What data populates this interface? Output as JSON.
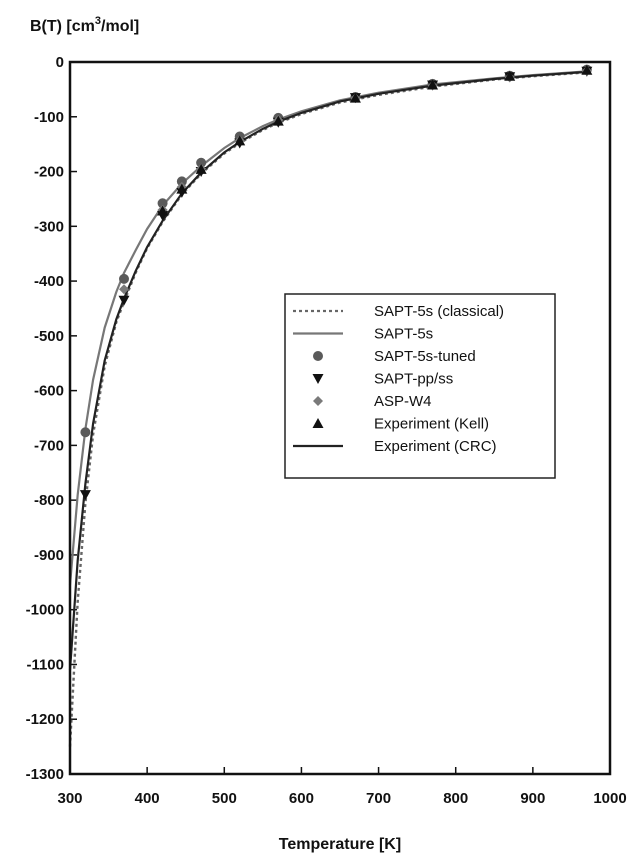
{
  "chart_data": {
    "type": "line",
    "ylabel_prefix": "B(T) [cm",
    "ylabel_sup": "3",
    "ylabel_suffix": "/mol]",
    "xlabel": "Temperature [K]",
    "xlim": [
      300,
      1000
    ],
    "ylim": [
      -1300,
      0
    ],
    "xticks": [
      "300",
      "400",
      "500",
      "600",
      "700",
      "800",
      "900",
      "1000"
    ],
    "yticks": [
      "0",
      "-100",
      "-200",
      "-300",
      "-400",
      "-500",
      "-600",
      "-700",
      "-800",
      "-900",
      "-1000",
      "-1100",
      "-1200",
      "-1300"
    ],
    "grid": false,
    "legend_position": "center-right",
    "series": [
      {
        "name": "SAPT-5s (classical)",
        "style": "dotted-line",
        "color": "#666666",
        "x": [
          300,
          310,
          320,
          330,
          345,
          360,
          370,
          385,
          400,
          420,
          445,
          470,
          500,
          520,
          550,
          570,
          600,
          650,
          700,
          770,
          850,
          900,
          970
        ],
        "y": [
          -1250,
          -985,
          -805,
          -680,
          -555,
          -475,
          -438,
          -385,
          -340,
          -292,
          -242,
          -204,
          -167,
          -148,
          -124,
          -111,
          -95,
          -74,
          -60,
          -45,
          -32,
          -26,
          -19
        ]
      },
      {
        "name": "SAPT-5s",
        "style": "solid-line",
        "color": "#777777",
        "x": [
          300,
          310,
          320,
          330,
          345,
          360,
          370,
          385,
          400,
          420,
          445,
          470,
          500,
          520,
          550,
          570,
          600,
          650,
          700,
          770,
          850,
          900,
          970
        ],
        "y": [
          -955,
          -790,
          -670,
          -580,
          -485,
          -420,
          -385,
          -344,
          -305,
          -262,
          -222,
          -190,
          -157,
          -139,
          -117,
          -105,
          -90,
          -70,
          -56,
          -41,
          -30,
          -24,
          -17
        ]
      },
      {
        "name": "SAPT-5s-tuned",
        "style": "circle",
        "color": "#5a5a5a",
        "x": [
          320,
          370,
          420,
          445,
          470,
          520,
          570,
          670,
          770,
          870,
          970
        ],
        "y": [
          -676,
          -396,
          -258,
          -218,
          -184,
          -136,
          -102,
          -64,
          -40,
          -25,
          -14
        ]
      },
      {
        "name": "SAPT-pp/ss",
        "style": "triangle-down",
        "color": "#111111",
        "x": [
          320,
          370,
          420,
          445,
          470,
          520,
          570,
          670,
          770,
          870,
          970
        ],
        "y": [
          -790,
          -435,
          -280,
          -238,
          -200,
          -148,
          -110,
          -65,
          -42,
          -27,
          -17
        ]
      },
      {
        "name": "ASP-W4",
        "style": "diamond",
        "color": "#7a7a7a",
        "x": [
          370,
          420,
          445,
          470,
          520,
          570,
          670,
          770,
          870,
          970
        ],
        "y": [
          -415,
          -270,
          -228,
          -195,
          -143,
          -106,
          -66,
          -43,
          -28,
          -16
        ]
      },
      {
        "name": "Experiment (Kell)",
        "style": "triangle-up",
        "color": "#111111",
        "x": [
          420,
          445,
          470,
          520,
          570,
          670,
          770,
          870,
          970
        ],
        "y": [
          -272,
          -232,
          -196,
          -144,
          -108,
          -66,
          -42,
          -26,
          -15
        ]
      },
      {
        "name": "Experiment (CRC)",
        "style": "solid-line",
        "color": "#222222",
        "x": [
          300,
          310,
          320,
          330,
          345,
          360,
          370,
          385,
          400,
          420,
          445,
          470,
          500,
          520,
          550,
          570,
          600,
          650,
          700,
          770,
          850,
          900,
          970
        ],
        "y": [
          -1110,
          -910,
          -770,
          -660,
          -545,
          -470,
          -432,
          -382,
          -338,
          -290,
          -240,
          -202,
          -165,
          -146,
          -122,
          -109,
          -93,
          -72,
          -58,
          -43,
          -31,
          -25,
          -18
        ]
      }
    ]
  }
}
